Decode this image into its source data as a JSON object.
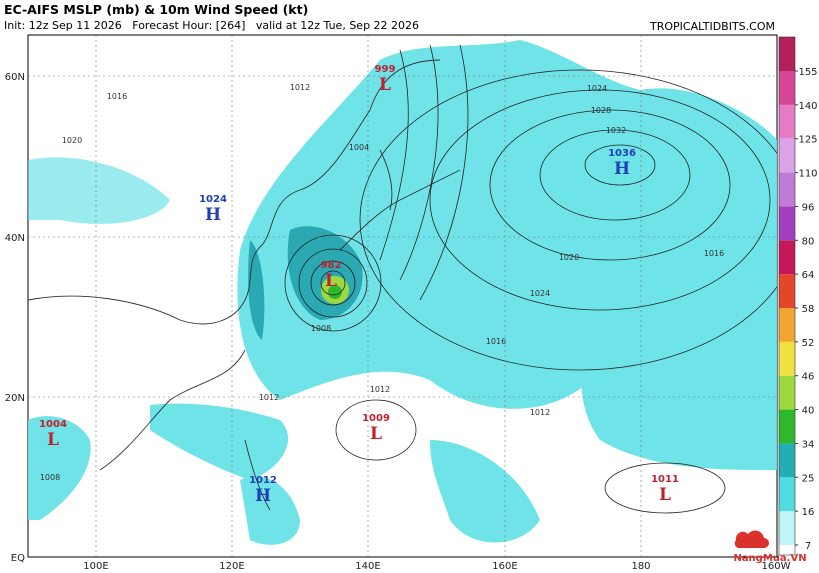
{
  "header": {
    "title": "EC-AIFS MSLP (mb) & 10m Wind Speed (kt)",
    "subtitle": "Init: 12z Sep 11 2026   Forecast Hour: [264]   valid at 12z Tue, Sep 22 2026",
    "site": "TROPICALTIDBITS.COM"
  },
  "map": {
    "lat_labels": [
      "60N",
      "40N",
      "20N",
      "EQ"
    ],
    "lon_labels": [
      "100E",
      "120E",
      "140E",
      "160E",
      "180",
      "160W"
    ],
    "centers": [
      {
        "kind": "L",
        "value": 999
      },
      {
        "kind": "H",
        "value": 1036
      },
      {
        "kind": "H",
        "value": 1024
      },
      {
        "kind": "L",
        "value": 982
      },
      {
        "kind": "L",
        "value": 1004
      },
      {
        "kind": "L",
        "value": 1009
      },
      {
        "kind": "L",
        "value": 1011
      },
      {
        "kind": "H",
        "value": 1012
      }
    ],
    "isobar_labels": [
      1008,
      1012,
      1016,
      1020,
      1024,
      1028,
      1032,
      1016,
      1020,
      1024,
      1012,
      1012,
      1008,
      1004,
      1016,
      1012
    ]
  },
  "colorbar": {
    "ticks": [
      7,
      16,
      25,
      34,
      40,
      46,
      52,
      58,
      64,
      80,
      96,
      110,
      125,
      140,
      155
    ],
    "colors": [
      "#bff5f5",
      "#4fdde3",
      "#23aeb6",
      "#2eb82e",
      "#9ed93f",
      "#f0e040",
      "#f2a531",
      "#e3462a",
      "#c4185a",
      "#a23fbf",
      "#c27ad8",
      "#d9a3e6",
      "#e67cc6",
      "#d64596",
      "#b3205a"
    ]
  },
  "watermark": "NangMua.VN"
}
